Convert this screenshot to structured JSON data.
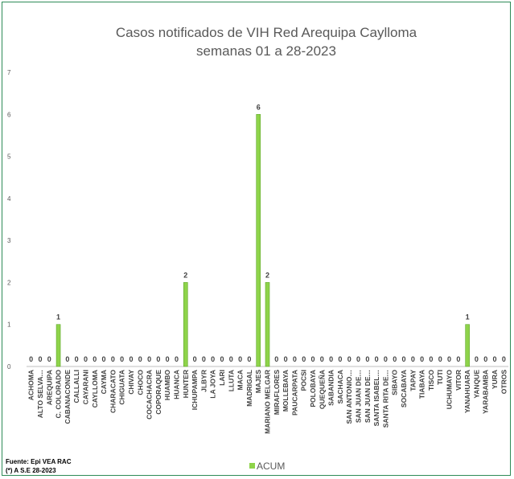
{
  "chart_data": {
    "type": "bar",
    "title": [
      "Casos notificados de VIH Red Arequipa Caylloma",
      "semanas 01 a 28-2023"
    ],
    "xlabel": "",
    "ylabel": "",
    "ylim": [
      0,
      7
    ],
    "yticks": [
      0,
      1,
      2,
      3,
      4,
      5,
      6,
      7
    ],
    "grid": false,
    "legend_position": "bottom",
    "colors": {
      "bar": "#8ed34a",
      "bar_edge": "#5fa82a"
    },
    "categories": [
      "ACHOMA",
      "ALTO SELVA…",
      "AREQUIPA",
      "C. COLORADO",
      "CABANACONDE",
      "CALLALLI",
      "CAYARANI",
      "CAYLLOMA",
      "CAYMA",
      "CHARACATO",
      "CHIGUATA",
      "CHIVAY",
      "CHOCO",
      "COCACHACRA",
      "COPORAQUE",
      "HUAMBO",
      "HUANCA",
      "HUNTER",
      "ICHUPAMPA",
      "JLBYR",
      "LA JOYA",
      "LARI",
      "LLUTA",
      "MACA",
      "MADRIGAL",
      "MAJES",
      "MARIANO MELGAR",
      "MIRAFLORES",
      "MOLLEBAYA",
      "PAUCARPATA",
      "POCSI",
      "POLOBAYA",
      "QUEQUEÑA",
      "SABANDIA",
      "SACHACA",
      "SAN ANTONIO…",
      "SAN JUAN DE…",
      "SAN JUAN DE…",
      "SANTA ISABEL…",
      "SANTA RITA DE…",
      "SIBAYO",
      "SOCABAYA",
      "TAPAY",
      "TIABAYA",
      "TISCO",
      "TUTI",
      "UCHUMAYO",
      "VITOR",
      "YANAHUARA",
      "YANQUE",
      "YARABAMBA",
      "YURA",
      "OTROS"
    ],
    "series": [
      {
        "name": "ACUM",
        "values": [
          0,
          0,
          0,
          1,
          0,
          0,
          0,
          0,
          0,
          0,
          0,
          0,
          0,
          0,
          0,
          0,
          0,
          2,
          0,
          0,
          0,
          0,
          0,
          0,
          0,
          6,
          2,
          0,
          0,
          0,
          0,
          0,
          0,
          0,
          0,
          0,
          0,
          0,
          0,
          0,
          0,
          0,
          0,
          0,
          0,
          0,
          0,
          0,
          1,
          0,
          0,
          0,
          0
        ]
      }
    ]
  },
  "footer": {
    "source": "Fuente: Epi VEA RAC",
    "note": "(*) A S.E 28-2023"
  }
}
